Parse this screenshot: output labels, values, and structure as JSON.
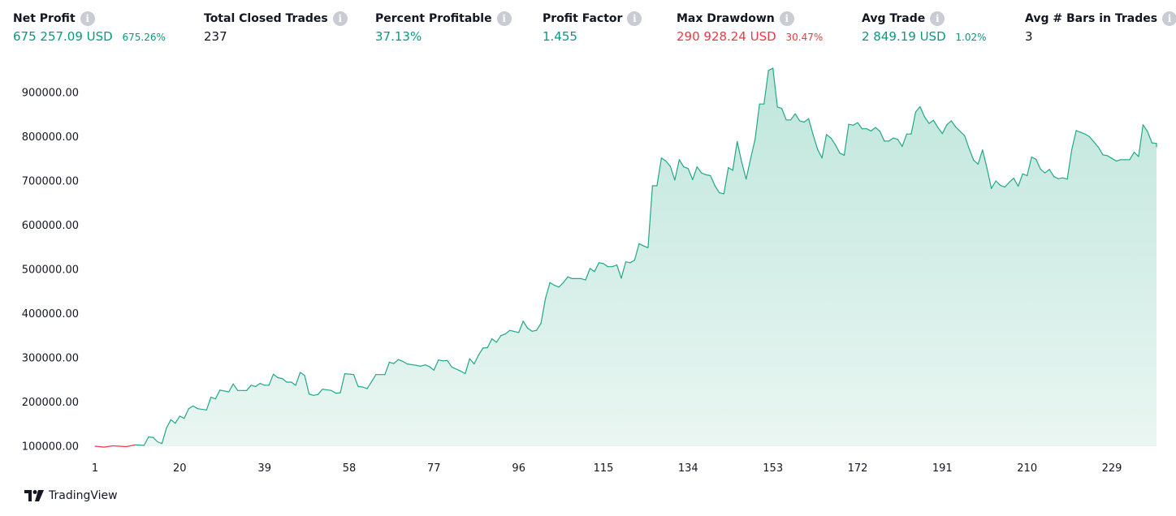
{
  "metrics": [
    {
      "title": "Net Profit",
      "value": "675 257.09 USD",
      "percent": "675.26%",
      "tone": "green"
    },
    {
      "title": "Total Closed Trades",
      "value": "237",
      "percent": "",
      "tone": "dark"
    },
    {
      "title": "Percent Profitable",
      "value": "37.13%",
      "percent": "",
      "tone": "green"
    },
    {
      "title": "Profit Factor",
      "value": "1.455",
      "percent": "",
      "tone": "green"
    },
    {
      "title": "Max Drawdown",
      "value": "290 928.24 USD",
      "percent": "30.47%",
      "tone": "red"
    },
    {
      "title": "Avg Trade",
      "value": "2 849.19 USD",
      "percent": "1.02%",
      "tone": "green"
    },
    {
      "title": "Avg # Bars in Trades",
      "value": "3",
      "percent": "",
      "tone": "dark"
    }
  ],
  "info_icon": "info-icon",
  "brand": {
    "logo_icon": "tradingview-logo-icon",
    "name": "TradingView"
  },
  "colors": {
    "positive": "#089981",
    "negative": "#f23645",
    "line": "#22a78a",
    "fill_top": "#bfe6dc",
    "fill_bottom": "#eaf6f2",
    "text": "#131722",
    "icon_gray": "#c9ccd3"
  },
  "chart_data": {
    "type": "area",
    "title": "",
    "xlabel": "",
    "ylabel": "",
    "x_ticks": [
      "1",
      "20",
      "39",
      "58",
      "77",
      "96",
      "115",
      "134",
      "153",
      "172",
      "191",
      "210",
      "229"
    ],
    "y_ticks": [
      "100000.00",
      "200000.00",
      "300000.00",
      "400000.00",
      "500000.00",
      "600000.00",
      "700000.00",
      "800000.00",
      "900000.00"
    ],
    "xlim": [
      1,
      238
    ],
    "ylim": [
      100000,
      950000
    ],
    "baseline": 100000,
    "series": [
      {
        "values": [
          [
            1,
            100000
          ],
          [
            3,
            98000
          ],
          [
            5,
            101000
          ],
          [
            8,
            99000
          ],
          [
            10,
            103000
          ],
          [
            12,
            102000
          ],
          [
            13,
            121000
          ],
          [
            14,
            120000
          ],
          [
            15,
            110000
          ],
          [
            16,
            106000
          ],
          [
            17,
            141000
          ],
          [
            18,
            160000
          ],
          [
            19,
            152000
          ],
          [
            20,
            168000
          ],
          [
            21,
            163000
          ],
          [
            22,
            185000
          ],
          [
            23,
            191000
          ],
          [
            24,
            185000
          ],
          [
            26,
            182000
          ],
          [
            27,
            211000
          ],
          [
            28,
            207000
          ],
          [
            29,
            227000
          ],
          [
            31,
            223000
          ],
          [
            32,
            241000
          ],
          [
            33,
            226000
          ],
          [
            35,
            226000
          ],
          [
            36,
            238000
          ],
          [
            37,
            235000
          ],
          [
            38,
            242000
          ],
          [
            39,
            238000
          ],
          [
            40,
            238000
          ],
          [
            41,
            263000
          ],
          [
            42,
            255000
          ],
          [
            43,
            253000
          ],
          [
            44,
            245000
          ],
          [
            45,
            245000
          ],
          [
            46,
            238000
          ],
          [
            47,
            267000
          ],
          [
            48,
            260000
          ],
          [
            49,
            218000
          ],
          [
            50,
            215000
          ],
          [
            51,
            217000
          ],
          [
            52,
            229000
          ],
          [
            54,
            226000
          ],
          [
            55,
            220000
          ],
          [
            56,
            221000
          ],
          [
            57,
            264000
          ],
          [
            59,
            262000
          ],
          [
            60,
            235000
          ],
          [
            61,
            234000
          ],
          [
            62,
            230000
          ],
          [
            63,
            246000
          ],
          [
            64,
            262000
          ],
          [
            66,
            262000
          ],
          [
            67,
            290000
          ],
          [
            68,
            287000
          ],
          [
            69,
            296000
          ],
          [
            70,
            292000
          ],
          [
            71,
            286000
          ],
          [
            73,
            283000
          ],
          [
            74,
            281000
          ],
          [
            75,
            284000
          ],
          [
            76,
            280000
          ],
          [
            77,
            272000
          ],
          [
            78,
            295000
          ],
          [
            79,
            293000
          ],
          [
            80,
            294000
          ],
          [
            81,
            279000
          ],
          [
            83,
            270000
          ],
          [
            84,
            264000
          ],
          [
            85,
            298000
          ],
          [
            86,
            286000
          ],
          [
            87,
            306000
          ],
          [
            88,
            322000
          ],
          [
            89,
            323000
          ],
          [
            90,
            343000
          ],
          [
            91,
            335000
          ],
          [
            92,
            350000
          ],
          [
            93,
            354000
          ],
          [
            94,
            362000
          ],
          [
            96,
            357000
          ],
          [
            97,
            383000
          ],
          [
            98,
            367000
          ],
          [
            99,
            360000
          ],
          [
            100,
            362000
          ],
          [
            101,
            378000
          ],
          [
            102,
            434000
          ],
          [
            103,
            470000
          ],
          [
            104,
            464000
          ],
          [
            105,
            460000
          ],
          [
            106,
            470000
          ],
          [
            107,
            483000
          ],
          [
            108,
            479000
          ],
          [
            110,
            479000
          ],
          [
            111,
            476000
          ],
          [
            112,
            502000
          ],
          [
            113,
            495000
          ],
          [
            114,
            515000
          ],
          [
            115,
            513000
          ],
          [
            116,
            506000
          ],
          [
            117,
            506000
          ],
          [
            118,
            510000
          ],
          [
            119,
            480000
          ],
          [
            120,
            517000
          ],
          [
            121,
            515000
          ],
          [
            122,
            521000
          ],
          [
            123,
            558000
          ],
          [
            124,
            553000
          ],
          [
            125,
            549000
          ],
          [
            126,
            689000
          ],
          [
            127,
            689000
          ],
          [
            128,
            752000
          ],
          [
            129,
            745000
          ],
          [
            130,
            733000
          ],
          [
            131,
            702000
          ],
          [
            132,
            748000
          ],
          [
            133,
            732000
          ],
          [
            134,
            728000
          ],
          [
            135,
            703000
          ],
          [
            136,
            732000
          ],
          [
            137,
            718000
          ],
          [
            138,
            714000
          ],
          [
            139,
            712000
          ],
          [
            140,
            689000
          ],
          [
            141,
            673000
          ],
          [
            142,
            671000
          ],
          [
            143,
            730000
          ],
          [
            144,
            724000
          ],
          [
            145,
            789000
          ],
          [
            146,
            743000
          ],
          [
            147,
            704000
          ],
          [
            148,
            750000
          ],
          [
            149,
            794000
          ],
          [
            150,
            874000
          ],
          [
            151,
            874000
          ],
          [
            152,
            950000
          ],
          [
            153,
            955000
          ],
          [
            154,
            867000
          ],
          [
            155,
            864000
          ],
          [
            156,
            838000
          ],
          [
            157,
            838000
          ],
          [
            158,
            852000
          ],
          [
            159,
            836000
          ],
          [
            160,
            833000
          ],
          [
            161,
            841000
          ],
          [
            162,
            805000
          ],
          [
            163,
            772000
          ],
          [
            164,
            752000
          ],
          [
            165,
            805000
          ],
          [
            166,
            797000
          ],
          [
            167,
            782000
          ],
          [
            168,
            763000
          ],
          [
            169,
            758000
          ],
          [
            170,
            828000
          ],
          [
            171,
            826000
          ],
          [
            172,
            832000
          ],
          [
            173,
            818000
          ],
          [
            174,
            818000
          ],
          [
            175,
            813000
          ],
          [
            176,
            821000
          ],
          [
            177,
            812000
          ],
          [
            178,
            790000
          ],
          [
            179,
            790000
          ],
          [
            180,
            797000
          ],
          [
            181,
            794000
          ],
          [
            182,
            778000
          ],
          [
            183,
            806000
          ],
          [
            184,
            806000
          ],
          [
            185,
            856000
          ],
          [
            186,
            868000
          ],
          [
            187,
            845000
          ],
          [
            188,
            830000
          ],
          [
            189,
            837000
          ],
          [
            190,
            821000
          ],
          [
            191,
            807000
          ],
          [
            192,
            827000
          ],
          [
            193,
            836000
          ],
          [
            194,
            822000
          ],
          [
            195,
            812000
          ],
          [
            196,
            802000
          ],
          [
            197,
            773000
          ],
          [
            198,
            747000
          ],
          [
            199,
            738000
          ],
          [
            200,
            770000
          ],
          [
            201,
            729000
          ],
          [
            202,
            683000
          ],
          [
            203,
            700000
          ],
          [
            204,
            690000
          ],
          [
            205,
            686000
          ],
          [
            206,
            697000
          ],
          [
            207,
            706000
          ],
          [
            208,
            688000
          ],
          [
            209,
            716000
          ],
          [
            210,
            712000
          ],
          [
            211,
            754000
          ],
          [
            212,
            749000
          ],
          [
            213,
            727000
          ],
          [
            214,
            718000
          ],
          [
            215,
            726000
          ],
          [
            216,
            710000
          ],
          [
            217,
            705000
          ],
          [
            218,
            707000
          ],
          [
            219,
            704000
          ],
          [
            220,
            770000
          ],
          [
            221,
            814000
          ],
          [
            222,
            810000
          ],
          [
            223,
            806000
          ],
          [
            224,
            800000
          ],
          [
            225,
            788000
          ],
          [
            226,
            776000
          ],
          [
            227,
            759000
          ],
          [
            228,
            757000
          ],
          [
            229,
            751000
          ],
          [
            230,
            745000
          ],
          [
            231,
            748000
          ],
          [
            232,
            748000
          ],
          [
            233,
            748000
          ],
          [
            234,
            765000
          ],
          [
            235,
            755000
          ],
          [
            236,
            827000
          ],
          [
            237,
            812000
          ],
          [
            238,
            786000
          ],
          [
            239,
            785000
          ],
          [
            240,
            782000
          ],
          [
            241,
            777000
          ]
        ]
      }
    ]
  }
}
